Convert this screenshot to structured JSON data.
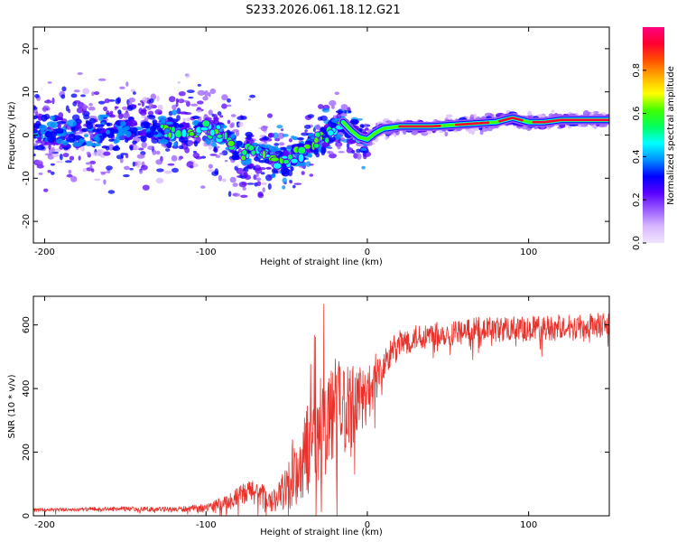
{
  "title": "S233.2026.061.18.12.G21",
  "chart_data": [
    {
      "type": "heatmap",
      "xlabel": "Height of straight line (km)",
      "ylabel": "Frequency (Hz)",
      "xlim": [
        -207,
        150
      ],
      "ylim": [
        -25,
        25
      ],
      "xticks": [
        -200,
        -100,
        0,
        100
      ],
      "yticks": [
        -20,
        -10,
        0,
        10,
        20
      ],
      "ridge": {
        "x": [
          -207,
          -180,
          -150,
          -120,
          -100,
          -90,
          -80,
          -70,
          -60,
          -50,
          -40,
          -30,
          -20,
          -15,
          -10,
          -5,
          0,
          5,
          10,
          20,
          40,
          60,
          80,
          90,
          100,
          110,
          120,
          150
        ],
        "y": [
          1,
          0,
          1,
          0.5,
          2,
          0,
          -4,
          -3,
          -5,
          -6,
          -4,
          -1,
          2,
          3,
          1,
          -0.5,
          -1,
          0.5,
          1.5,
          2,
          2,
          2.5,
          3,
          4,
          3,
          3,
          3.5,
          3.5
        ]
      },
      "colorbar": {
        "label": "Normalized spectral amplitude",
        "range": [
          0,
          1
        ],
        "ticks": [
          "0.0",
          "0.2",
          "0.4",
          "0.6",
          "0.8"
        ],
        "colors": [
          "#f0e4ff",
          "#d8b8ff",
          "#9a5cff",
          "#5a00ff",
          "#0000ff",
          "#0090ff",
          "#00ffff",
          "#00ff60",
          "#40ff00",
          "#ffff00",
          "#ffb000",
          "#ff5000",
          "#ff0030",
          "#ff0080"
        ]
      }
    },
    {
      "type": "line",
      "xlabel": "Height of straight line (km)",
      "ylabel": "SNR (10 * v/v)",
      "xlim": [
        -207,
        150
      ],
      "ylim": [
        0,
        690
      ],
      "xticks": [
        -200,
        -100,
        0,
        100
      ],
      "yticks": [
        0,
        200,
        400,
        600
      ],
      "series": [
        {
          "name": "SNR",
          "color": "#e8312b",
          "x": [
            -207,
            -180,
            -150,
            -120,
            -100,
            -90,
            -80,
            -70,
            -65,
            -60,
            -55,
            -50,
            -45,
            -40,
            -35,
            -30,
            -25,
            -20,
            -15,
            -10,
            -5,
            0,
            5,
            10,
            15,
            20,
            25,
            30,
            40,
            50,
            60,
            70,
            80,
            90,
            100,
            110,
            120,
            130,
            140,
            150
          ],
          "y": [
            18,
            20,
            22,
            20,
            25,
            40,
            60,
            80,
            60,
            40,
            60,
            90,
            120,
            180,
            220,
            260,
            300,
            340,
            340,
            350,
            360,
            380,
            420,
            470,
            510,
            540,
            550,
            560,
            570,
            575,
            580,
            585,
            585,
            590,
            590,
            590,
            595,
            595,
            600,
            600
          ],
          "variability": [
            6,
            6,
            7,
            8,
            12,
            20,
            30,
            45,
            40,
            30,
            45,
            70,
            100,
            130,
            150,
            170,
            170,
            160,
            150,
            130,
            110,
            90,
            70,
            55,
            50,
            45,
            42,
            40,
            40,
            40,
            40,
            40,
            40,
            40,
            40,
            40,
            40,
            40,
            40,
            40
          ]
        }
      ]
    }
  ]
}
